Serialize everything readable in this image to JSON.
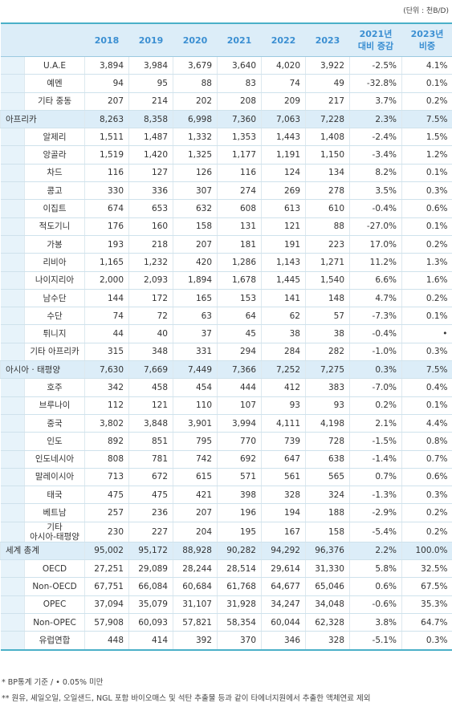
{
  "unit": "(단위 : 천B/D)",
  "table": {
    "columns": [
      "2018",
      "2019",
      "2020",
      "2021",
      "2022",
      "2023",
      "2021년\n대비 증감",
      "2023년\n비중"
    ],
    "groups": [
      {
        "rows": [
          [
            "U.A.E",
            "3,894",
            "3,984",
            "3,679",
            "3,640",
            "4,020",
            "3,922",
            "-2.5%",
            "4.1%"
          ],
          [
            "예멘",
            "94",
            "95",
            "88",
            "83",
            "74",
            "49",
            "-32.8%",
            "0.1%"
          ],
          [
            "기타 중동",
            "207",
            "214",
            "202",
            "208",
            "209",
            "217",
            "3.7%",
            "0.2%"
          ]
        ]
      },
      {
        "header": [
          "아프리카",
          "8,263",
          "8,358",
          "6,998",
          "7,360",
          "7,063",
          "7,228",
          "2.3%",
          "7.5%"
        ],
        "rows": [
          [
            "알제리",
            "1,511",
            "1,487",
            "1,332",
            "1,353",
            "1,443",
            "1,408",
            "-2.4%",
            "1.5%"
          ],
          [
            "앙골라",
            "1,519",
            "1,420",
            "1,325",
            "1,177",
            "1,191",
            "1,150",
            "-3.4%",
            "1.2%"
          ],
          [
            "차드",
            "116",
            "127",
            "126",
            "116",
            "124",
            "134",
            "8.2%",
            "0.1%"
          ],
          [
            "콩고",
            "330",
            "336",
            "307",
            "274",
            "269",
            "278",
            "3.5%",
            "0.3%"
          ],
          [
            "이집트",
            "674",
            "653",
            "632",
            "608",
            "613",
            "610",
            "-0.4%",
            "0.6%"
          ],
          [
            "적도기니",
            "176",
            "160",
            "158",
            "131",
            "121",
            "88",
            "-27.0%",
            "0.1%"
          ],
          [
            "가봉",
            "193",
            "218",
            "207",
            "181",
            "191",
            "223",
            "17.0%",
            "0.2%"
          ],
          [
            "리비아",
            "1,165",
            "1,232",
            "420",
            "1,286",
            "1,143",
            "1,271",
            "11.2%",
            "1.3%"
          ],
          [
            "나이지리아",
            "2,000",
            "2,093",
            "1,894",
            "1,678",
            "1,445",
            "1,540",
            "6.6%",
            "1.6%"
          ],
          [
            "남수단",
            "144",
            "172",
            "165",
            "153",
            "141",
            "148",
            "4.7%",
            "0.2%"
          ],
          [
            "수단",
            "74",
            "72",
            "63",
            "64",
            "62",
            "57",
            "-7.3%",
            "0.1%"
          ],
          [
            "튀니지",
            "44",
            "40",
            "37",
            "45",
            "38",
            "38",
            "-0.4%",
            "•"
          ],
          [
            "기타 아프리카",
            "315",
            "348",
            "331",
            "294",
            "284",
            "282",
            "-1.0%",
            "0.3%"
          ]
        ]
      },
      {
        "header": [
          "아시아 · 태평양",
          "7,630",
          "7,669",
          "7,449",
          "7,366",
          "7,252",
          "7,275",
          "0.3%",
          "7.5%"
        ],
        "rows": [
          [
            "호주",
            "342",
            "458",
            "454",
            "444",
            "412",
            "383",
            "-7.0%",
            "0.4%"
          ],
          [
            "브루나이",
            "112",
            "121",
            "110",
            "107",
            "93",
            "93",
            "0.2%",
            "0.1%"
          ],
          [
            "중국",
            "3,802",
            "3,848",
            "3,901",
            "3,994",
            "4,111",
            "4,198",
            "2.1%",
            "4.4%"
          ],
          [
            "인도",
            "892",
            "851",
            "795",
            "770",
            "739",
            "728",
            "-1.5%",
            "0.8%"
          ],
          [
            "인도네시아",
            "808",
            "781",
            "742",
            "692",
            "647",
            "638",
            "-1.4%",
            "0.7%"
          ],
          [
            "말레이시아",
            "713",
            "672",
            "615",
            "571",
            "561",
            "565",
            "0.7%",
            "0.6%"
          ],
          [
            "태국",
            "475",
            "475",
            "421",
            "398",
            "328",
            "324",
            "-1.3%",
            "0.3%"
          ],
          [
            "베트남",
            "257",
            "236",
            "207",
            "196",
            "194",
            "188",
            "-2.9%",
            "0.2%"
          ],
          [
            "기타\n아시아-태평양",
            "230",
            "227",
            "204",
            "195",
            "167",
            "158",
            "-5.4%",
            "0.2%"
          ]
        ]
      },
      {
        "header": [
          "세계 총계",
          "95,002",
          "95,172",
          "88,928",
          "90,282",
          "94,292",
          "96,376",
          "2.2%",
          "100.0%"
        ],
        "rows": [
          [
            "OECD",
            "27,251",
            "29,089",
            "28,244",
            "28,514",
            "29,614",
            "31,330",
            "5.8%",
            "32.5%"
          ],
          [
            "Non-OECD",
            "67,751",
            "66,084",
            "60,684",
            "61,768",
            "64,677",
            "65,046",
            "0.6%",
            "67.5%"
          ],
          [
            "OPEC",
            "37,094",
            "35,079",
            "31,107",
            "31,928",
            "34,247",
            "34,048",
            "-0.6%",
            "35.3%"
          ],
          [
            "Non-OPEC",
            "57,908",
            "60,093",
            "57,821",
            "58,354",
            "60,044",
            "62,328",
            "3.8%",
            "64.7%"
          ],
          [
            "유럽연합",
            "448",
            "414",
            "392",
            "370",
            "346",
            "328",
            "-5.1%",
            "0.3%"
          ]
        ]
      }
    ]
  },
  "footnotes": [
    "* BP통계 기준 / • 0.05% 미만",
    "** 원유, 셰일오일, 오일샌드, NGL 포함 바이오매스 및 석탄 추출물 등과 같이 타에너지원에서 추출한 액체연료 제외"
  ]
}
